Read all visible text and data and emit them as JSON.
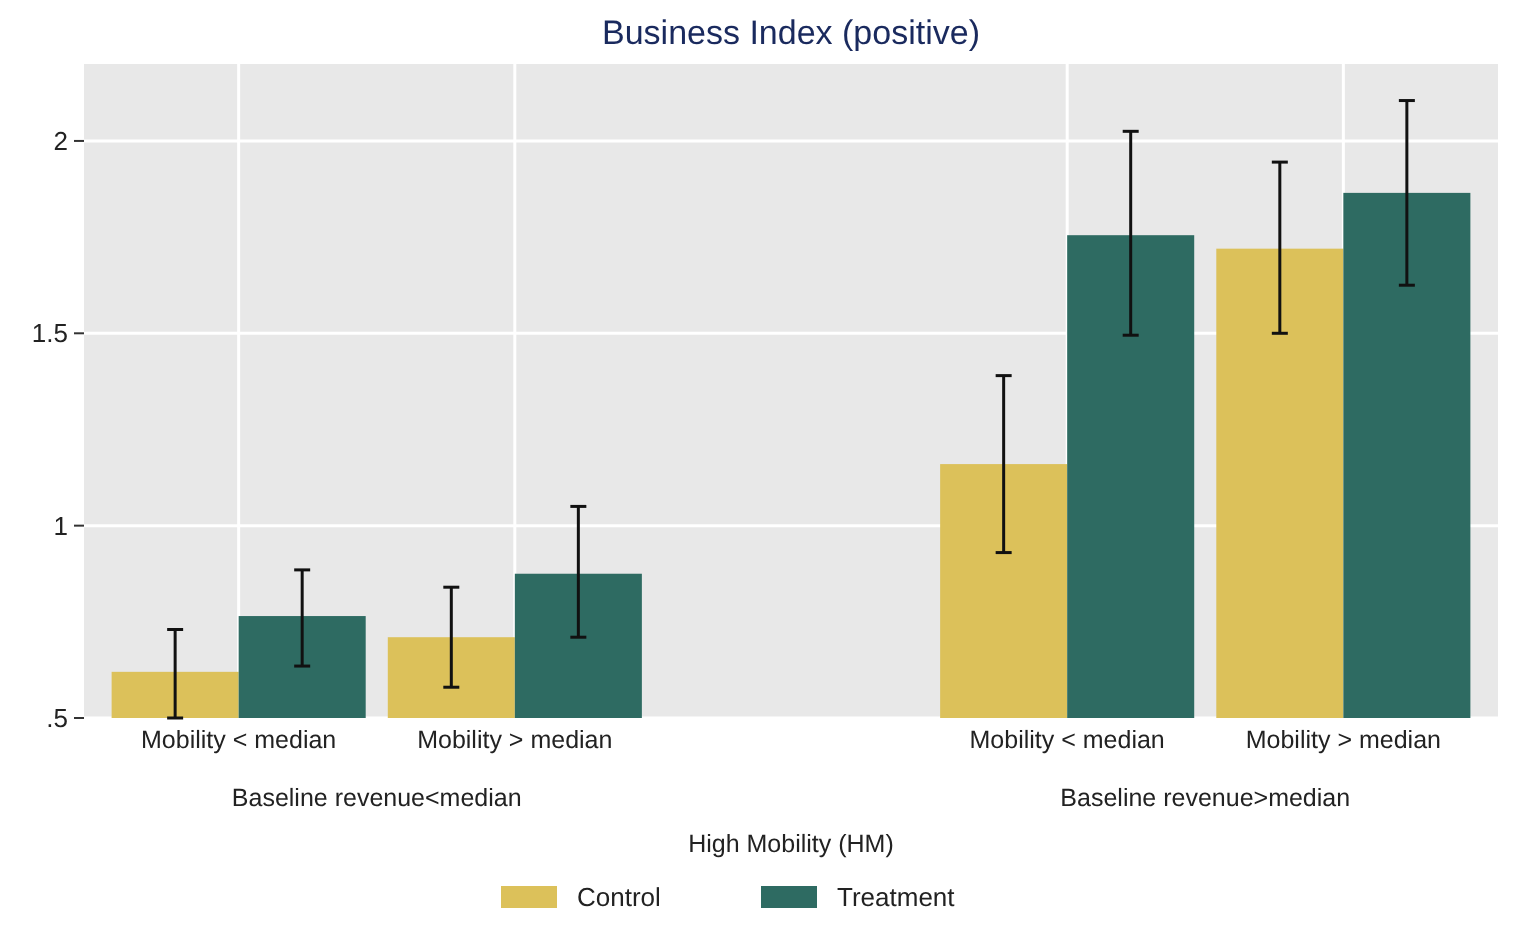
{
  "chart_data": {
    "type": "bar",
    "title": "Business Index (positive)",
    "xlabel": "High Mobility (HM)",
    "categories": [
      "Mobility < median",
      "Mobility > median",
      null,
      "Mobility < median",
      "Mobility > median"
    ],
    "annotations": [
      "Baseline revenue<median",
      "Baseline revenue>median"
    ],
    "series": [
      {
        "name": "Control",
        "color": "#dcc15a",
        "values": [
          0.62,
          0.71,
          null,
          1.16,
          1.72
        ],
        "errors": [
          [
            0.5,
            0.73
          ],
          [
            0.58,
            0.84
          ],
          null,
          [
            0.93,
            1.39
          ],
          [
            1.5,
            1.945
          ]
        ]
      },
      {
        "name": "Treatment",
        "color": "#2e6b62",
        "values": [
          0.765,
          0.875,
          null,
          1.755,
          1.865
        ],
        "errors": [
          [
            0.635,
            0.885
          ],
          [
            0.71,
            1.05
          ],
          null,
          [
            1.495,
            2.025
          ],
          [
            1.625,
            2.105
          ]
        ]
      }
    ],
    "ylim": [
      0.5,
      2.2
    ],
    "yticks": [
      {
        "value": 0.5,
        "label": ".5"
      },
      1,
      1.5,
      2
    ],
    "grid": true,
    "legend": "bottom"
  }
}
